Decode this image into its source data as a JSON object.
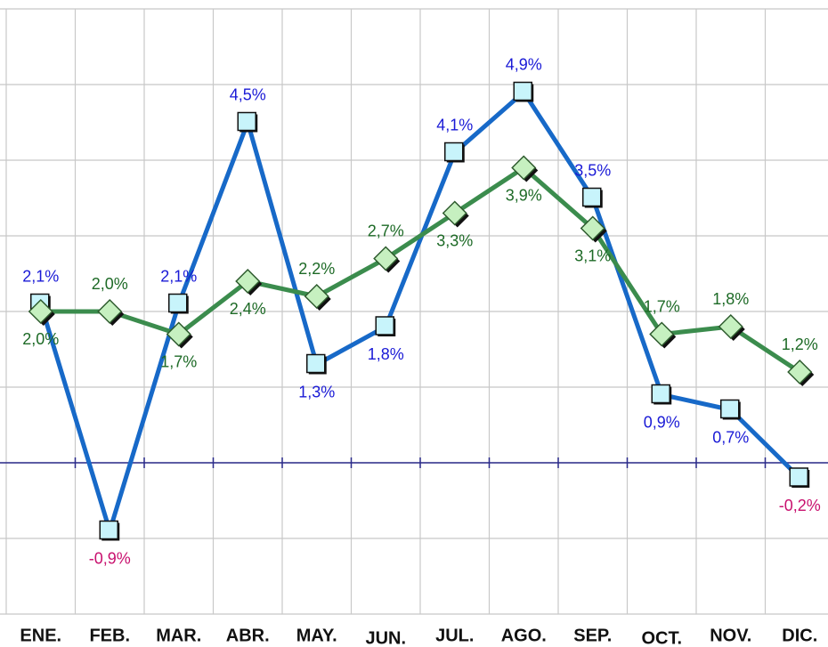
{
  "chart_data": {
    "type": "line",
    "categories": [
      "ENE.",
      "FEB.",
      "MAR.",
      "ABR.",
      "MAY.",
      "JUN.",
      "JUL.",
      "AGO.",
      "SEP.",
      "OCT.",
      "NOV.",
      "DIC."
    ],
    "series": [
      {
        "color": "#1769c8",
        "marker": "square",
        "marker_fill": "#c8f4fb",
        "label_color": "#1a1ad6",
        "values": [
          2.1,
          -0.9,
          2.1,
          4.5,
          1.3,
          1.8,
          4.1,
          4.9,
          3.5,
          0.9,
          0.7,
          -0.2
        ],
        "value_labels": [
          "2,1%",
          "-0,9%",
          "2,1%",
          "4,5%",
          "1,3%",
          "1,8%",
          "4,1%",
          "4,9%",
          "3,5%",
          "0,9%",
          "0,7%",
          "-0,2%"
        ]
      },
      {
        "color": "#3b8c4d",
        "marker": "diamond",
        "marker_fill": "#c6f0c0",
        "label_color": "#1d6a26",
        "values": [
          2.0,
          2.0,
          1.7,
          2.4,
          2.2,
          2.7,
          3.3,
          3.9,
          3.1,
          1.7,
          1.8,
          1.2
        ],
        "value_labels": [
          "2,0%",
          "2,0%",
          "1,7%",
          "2,4%",
          "2,2%",
          "2,7%",
          "3,3%",
          "3,9%",
          "3,1%",
          "1,7%",
          "1,8%",
          "1,2%"
        ]
      }
    ],
    "negative_label_color": "#c8106e",
    "ylim": [
      -2,
      6
    ],
    "yticks": [
      -2,
      -1,
      0,
      1,
      2,
      3,
      4,
      5,
      6
    ],
    "grid": true
  }
}
